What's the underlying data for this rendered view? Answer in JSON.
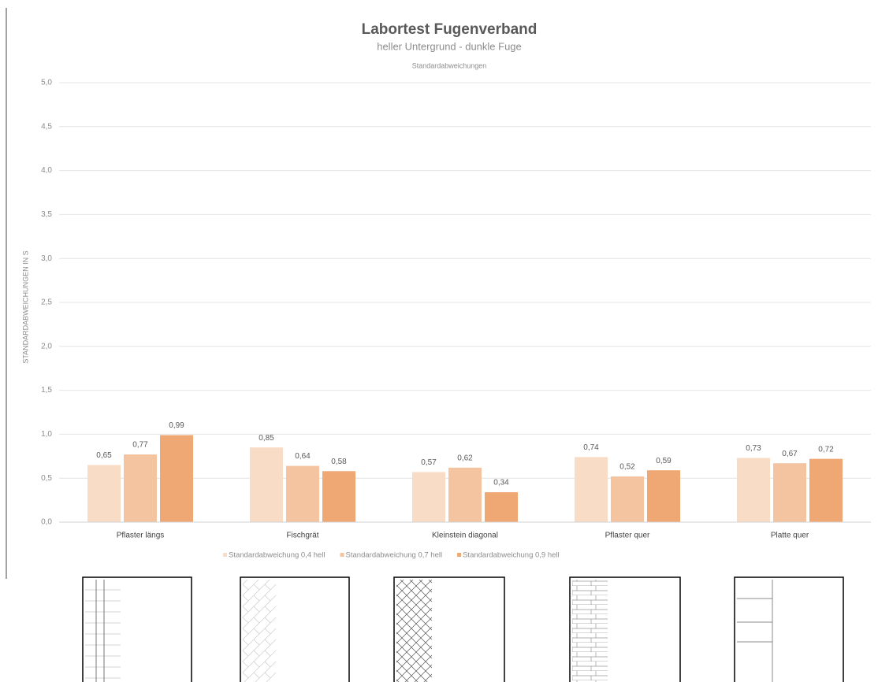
{
  "chart_data": {
    "type": "bar",
    "title": "Labortest Fugenverband",
    "subtitle": "heller Untergrund - dunkle Fuge",
    "subtitle2": "Standardabweichungen",
    "y_label": "STANDARDABWEICHUNGEN IN S",
    "categories": [
      "Pflaster längs",
      "Fischgrät",
      "Kleinstein diagonal",
      "Pflaster quer",
      "Platte quer"
    ],
    "series": [
      {
        "name": "Standardabweichung 0,4 hell",
        "color": "#f9dcc6",
        "values": [
          0.65,
          0.85,
          0.57,
          0.74,
          0.73
        ],
        "value_labels": [
          "0,65",
          "0,85",
          "0,57",
          "0,74",
          "0,73"
        ]
      },
      {
        "name": "Standardabweichung 0,7 hell",
        "color": "#f4c3a0",
        "values": [
          0.77,
          0.64,
          0.62,
          0.52,
          0.67
        ],
        "value_labels": [
          "0,77",
          "0,64",
          "0,62",
          "0,52",
          "0,67"
        ]
      },
      {
        "name": "Standardabweichung 0,9 hell",
        "color": "#efa873",
        "values": [
          0.99,
          0.58,
          0.34,
          0.59,
          0.72
        ],
        "value_labels": [
          "0,99",
          "0,58",
          "0,34",
          "0,59",
          "0,72"
        ]
      }
    ],
    "ylim": [
      0,
      5
    ],
    "yticks": [
      {
        "value": 0,
        "label": "0,0"
      },
      {
        "value": 0.5,
        "label": "0,5"
      },
      {
        "value": 1,
        "label": "1,0"
      },
      {
        "value": 1.5,
        "label": "1,5"
      },
      {
        "value": 2,
        "label": "2,0"
      },
      {
        "value": 2.5,
        "label": "2,5"
      },
      {
        "value": 3,
        "label": "3,0"
      },
      {
        "value": 3.5,
        "label": "3,5"
      },
      {
        "value": 4,
        "label": "4,0"
      },
      {
        "value": 4.5,
        "label": "4,5"
      },
      {
        "value": 5,
        "label": "5,0"
      }
    ],
    "grid": true
  }
}
